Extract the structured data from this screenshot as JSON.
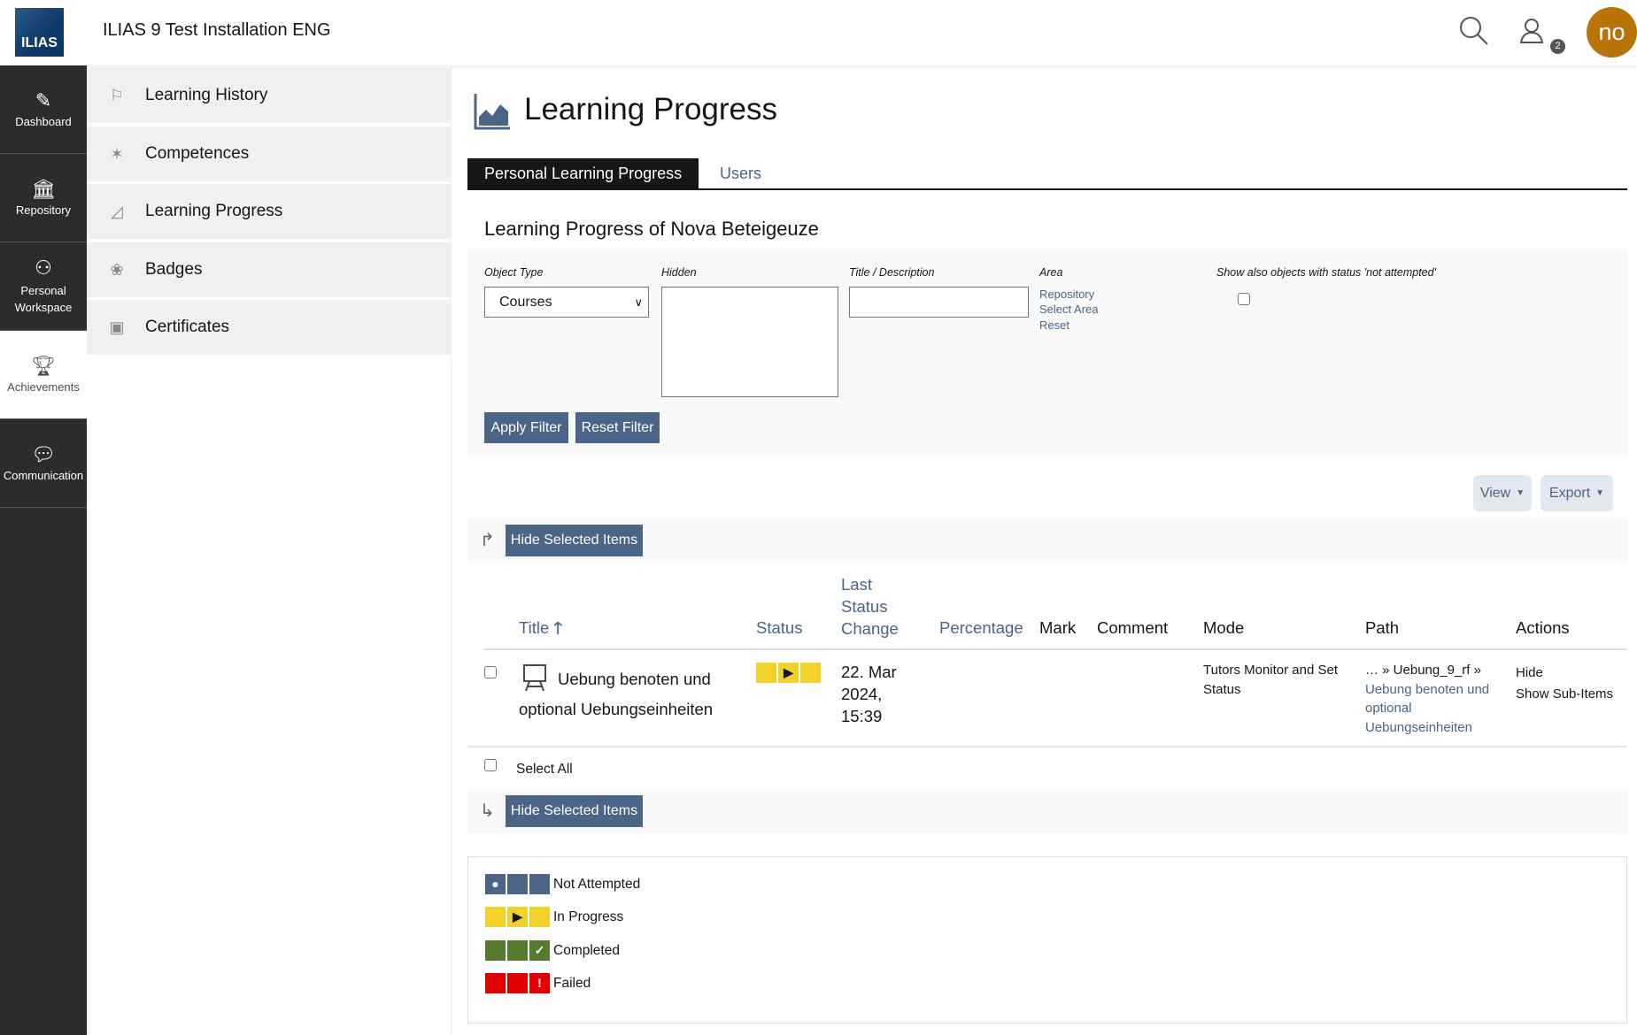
{
  "header": {
    "logo_text": "ILIAS",
    "site_title": "ILIAS 9 Test Installation ENG",
    "notification_count": "2",
    "avatar_initials": "no"
  },
  "mainbar": [
    {
      "label": "Dashboard"
    },
    {
      "label": "Repository"
    },
    {
      "label": "Personal Workspace"
    },
    {
      "label": "Achievements",
      "active": true
    },
    {
      "label": "Communication"
    }
  ],
  "slate": [
    {
      "label": "Learning History"
    },
    {
      "label": "Competences"
    },
    {
      "label": "Learning Progress"
    },
    {
      "label": "Badges"
    },
    {
      "label": "Certificates"
    }
  ],
  "page": {
    "title": "Learning Progress",
    "tabs": [
      {
        "label": "Personal Learning Progress",
        "active": true
      },
      {
        "label": "Users"
      }
    ],
    "subheading": "Learning Progress of Nova Beteigeuze"
  },
  "filter": {
    "object_type_label": "Object Type",
    "object_type_value": "Courses",
    "hidden_label": "Hidden",
    "title_label": "Title / Description",
    "title_value": "",
    "area_label": "Area",
    "area_value": "Repository",
    "select_area": "Select Area",
    "reset": "Reset",
    "not_attempted_label": "Show also objects with status 'not attempted'",
    "apply": "Apply Filter",
    "reset_filter": "Reset Filter"
  },
  "toolbar": {
    "view": "View",
    "export": "Export",
    "hide_selected": "Hide Selected Items",
    "select_all": "Select All"
  },
  "table": {
    "columns": {
      "title": "Title",
      "status": "Status",
      "last_status_change": "Last Status Change",
      "percentage": "Percentage",
      "mark": "Mark",
      "comment": "Comment",
      "mode": "Mode",
      "path": "Path",
      "actions": "Actions"
    },
    "rows": [
      {
        "title": "Uebung benoten und optional Uebungseinheiten",
        "status": "In Progress",
        "last_status_change": "22. Mar 2024, 15:39",
        "percentage": "",
        "mark": "",
        "comment": "",
        "mode": "Tutors Monitor and Set Status",
        "path_prefix": "… » Uebung_9_rf »",
        "path_link": "Uebung benoten und optional Uebungseinheiten",
        "actions": [
          "Hide",
          "Show Sub-Items"
        ]
      }
    ]
  },
  "legend": [
    {
      "label": "Not Attempted",
      "color": "#4c6586"
    },
    {
      "label": "In Progress",
      "color": "#f2d12b"
    },
    {
      "label": "Completed",
      "color": "#557b2e"
    },
    {
      "label": "Failed",
      "color": "#e00000"
    }
  ]
}
